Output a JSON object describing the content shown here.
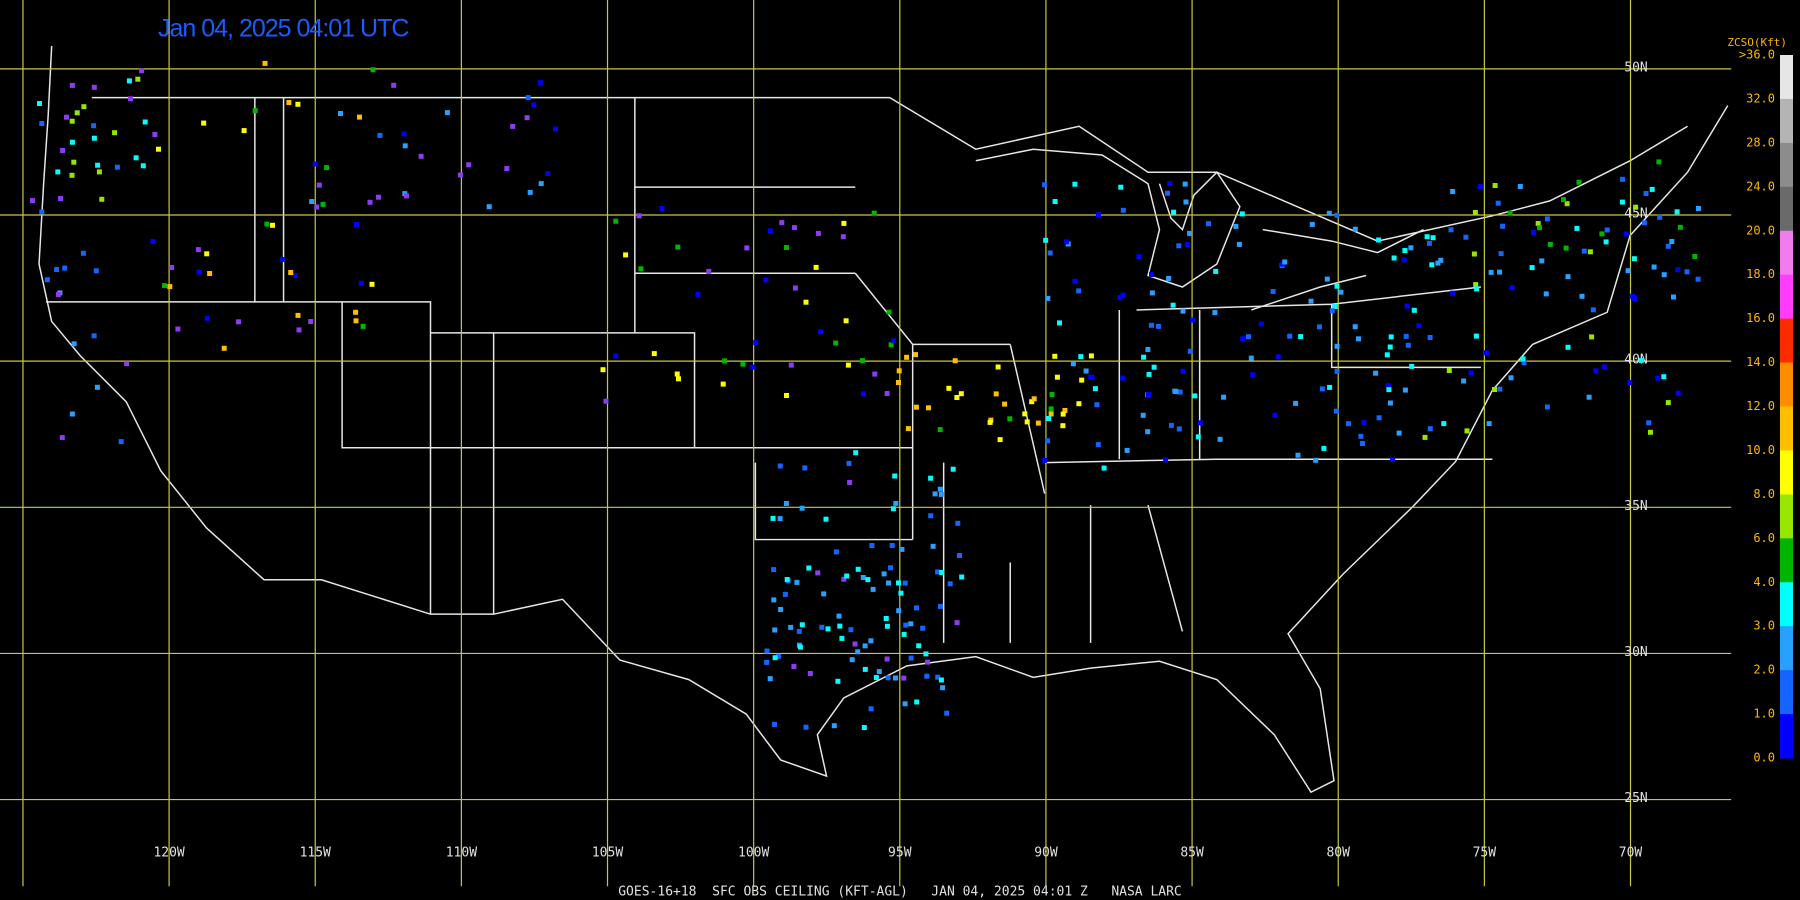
{
  "header": {
    "title": "Jan 04, 2025 04:01 UTC"
  },
  "map": {
    "lon_ticks": [
      {
        "value": -120,
        "label": "120W"
      },
      {
        "value": -115,
        "label": "115W"
      },
      {
        "value": -110,
        "label": "110W"
      },
      {
        "value": -105,
        "label": "105W"
      },
      {
        "value": -100,
        "label": "100W"
      },
      {
        "value": -95,
        "label": "95W"
      },
      {
        "value": -90,
        "label": "90W"
      },
      {
        "value": -85,
        "label": "85W"
      },
      {
        "value": -80,
        "label": "80W"
      },
      {
        "value": -75,
        "label": "75W"
      },
      {
        "value": -70,
        "label": "70W"
      }
    ],
    "lat_ticks": [
      {
        "value": 50,
        "label": "50N"
      },
      {
        "value": 45,
        "label": "45N"
      },
      {
        "value": 40,
        "label": "40N"
      },
      {
        "value": 35,
        "label": "35N"
      },
      {
        "value": 30,
        "label": "30N"
      },
      {
        "value": 25,
        "label": "25N"
      }
    ]
  },
  "legend": {
    "title": "ZCSO(Kft)",
    "labels": [
      ">36.0",
      "32.0",
      "28.0",
      "24.0",
      "20.0",
      "18.0",
      "16.0",
      "14.0",
      "12.0",
      "10.0",
      "8.0",
      "6.0",
      "4.0",
      "3.0",
      "2.0",
      "1.0",
      "0.0"
    ],
    "colors": [
      "#e6e6e6",
      "#b4b4b4",
      "#8c8c8c",
      "#6a6a6a",
      "#f07cf0",
      "#ff3cff",
      "#ff2a00",
      "#ff8c00",
      "#ffbe00",
      "#ffff00",
      "#96e600",
      "#00b400",
      "#00ffff",
      "#28a0ff",
      "#1464ff",
      "#0000ff",
      "#8c3cf0"
    ]
  },
  "footer": {
    "text": "GOES-16+18  SFC OBS CEILING (KFT-AGL)   JAN 04, 2025 04:01 Z   NASA LARC"
  }
}
